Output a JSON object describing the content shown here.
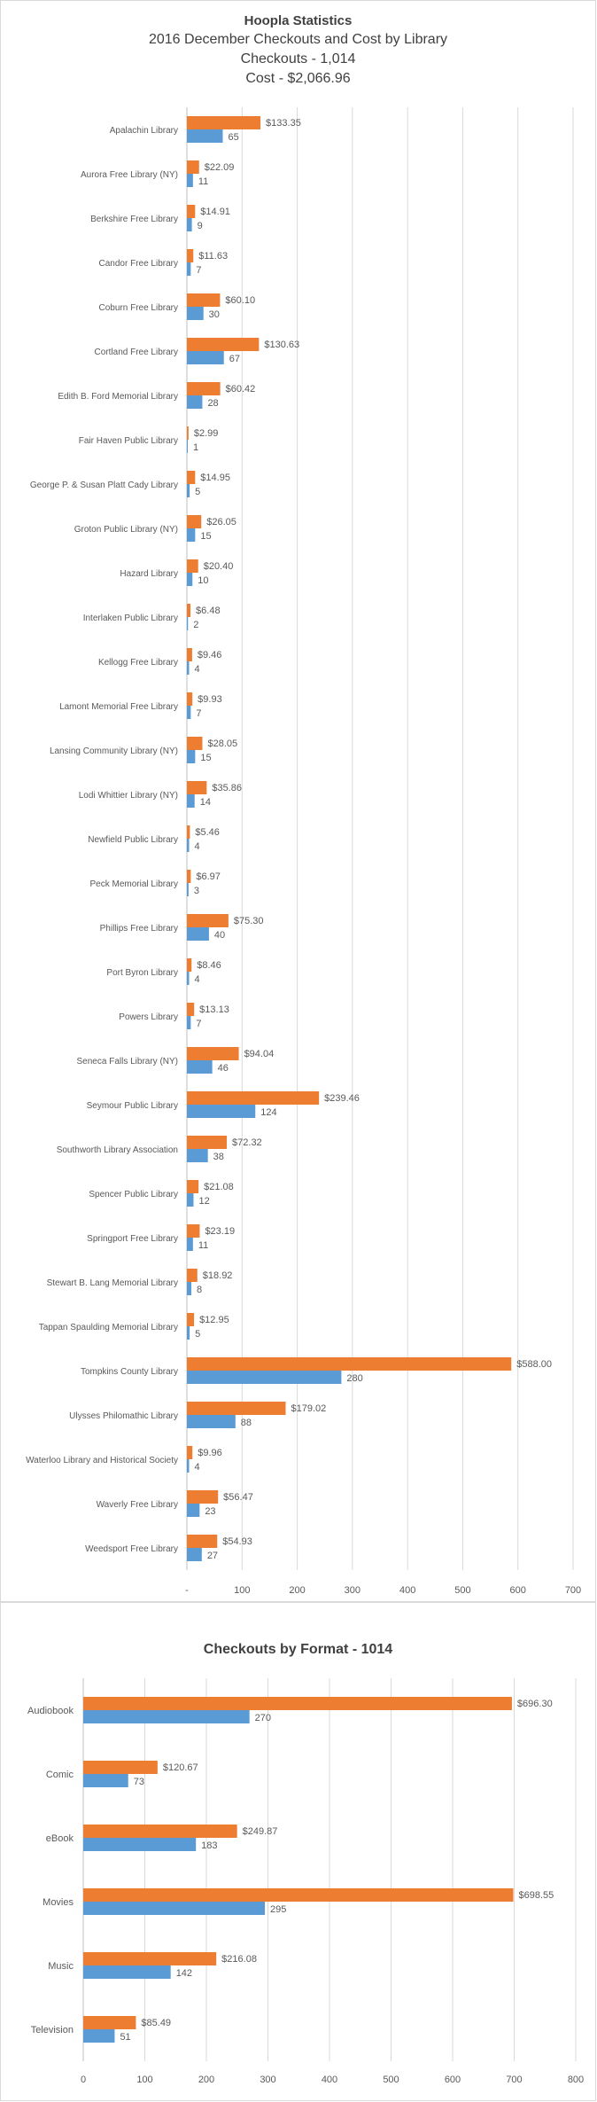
{
  "chart_data": [
    {
      "type": "bar",
      "orientation": "horizontal",
      "title": "Hoopla Statistics",
      "subtitles": [
        "2016 December Checkouts and Cost by Library",
        "Checkouts - 1,014",
        "Cost - $2,066.96"
      ],
      "categories": [
        "Apalachin Library",
        "Aurora Free Library (NY)",
        "Berkshire Free Library",
        "Candor Free Library",
        "Coburn Free Library",
        "Cortland Free Library",
        "Edith B. Ford Memorial Library",
        "Fair Haven Public Library",
        "George P. & Susan Platt Cady Library",
        "Groton Public Library (NY)",
        "Hazard Library",
        "Interlaken Public Library",
        "Kellogg Free Library",
        "Lamont Memorial Free Library",
        "Lansing Community Library (NY)",
        "Lodi Whittier Library (NY)",
        "Newfield Public Library",
        "Peck Memorial Library",
        "Phillips Free Library",
        "Port Byron Library",
        "Powers Library",
        "Seneca Falls Library (NY)",
        "Seymour Public Library",
        "Southworth Library Association",
        "Spencer Public Library",
        "Springport Free Library",
        "Stewart B. Lang Memorial Library",
        "Tappan Spaulding Memorial Library",
        "Tompkins County Library",
        "Ulysses Philomathic Library",
        "Waterloo Library and Historical Society",
        "Waverly Free Library",
        "Weedsport Free Library"
      ],
      "series": [
        {
          "color": "#ed7d31",
          "values": [
            133.35,
            22.09,
            14.91,
            11.63,
            60.1,
            130.63,
            60.42,
            2.99,
            14.95,
            26.05,
            20.4,
            6.48,
            9.46,
            9.93,
            28.05,
            35.86,
            5.46,
            6.97,
            75.3,
            8.46,
            13.13,
            94.04,
            239.46,
            72.32,
            21.08,
            23.19,
            18.92,
            12.95,
            588.0,
            179.02,
            9.96,
            56.47,
            54.93
          ],
          "labels": [
            "$133.35",
            "$22.09",
            "$14.91",
            "$11.63",
            "$60.10",
            "$130.63",
            "$60.42",
            "$2.99",
            "$14.95",
            "$26.05",
            "$20.40",
            "$6.48",
            "$9.46",
            "$9.93",
            "$28.05",
            "$35.86",
            "$5.46",
            "$6.97",
            "$75.30",
            "$8.46",
            "$13.13",
            "$94.04",
            "$239.46",
            "$72.32",
            "$21.08",
            "$23.19",
            "$18.92",
            "$12.95",
            "$588.00",
            "$179.02",
            "$9.96",
            "$56.47",
            "$54.93"
          ]
        },
        {
          "color": "#5b9bd5",
          "values": [
            65,
            11,
            9,
            7,
            30,
            67,
            28,
            1,
            5,
            15,
            10,
            2,
            4,
            7,
            15,
            14,
            4,
            3,
            40,
            4,
            7,
            46,
            124,
            38,
            12,
            11,
            8,
            5,
            280,
            88,
            4,
            23,
            27
          ],
          "labels": [
            "65",
            "11",
            "9",
            "7",
            "30",
            "67",
            "28",
            "1",
            "5",
            "15",
            "10",
            "2",
            "4",
            "7",
            "15",
            "14",
            "4",
            "3",
            "40",
            "4",
            "7",
            "46",
            "124",
            "38",
            "12",
            "11",
            "8",
            "5",
            "280",
            "88",
            "4",
            "23",
            "27"
          ]
        }
      ],
      "xlim": [
        0,
        700
      ],
      "x_ticks": [
        "-",
        "100",
        "200",
        "300",
        "400",
        "500",
        "600",
        "700"
      ],
      "grid": true
    },
    {
      "type": "bar",
      "orientation": "horizontal",
      "title": "Checkouts by Format - 1014",
      "categories": [
        "Audiobook",
        "Comic",
        "eBook",
        "Movies",
        "Music",
        "Television"
      ],
      "series": [
        {
          "color": "#ed7d31",
          "values": [
            696.3,
            120.67,
            249.87,
            698.55,
            216.08,
            85.49
          ],
          "labels": [
            "$696.30",
            "$120.67",
            "$249.87",
            "$698.55",
            "$216.08",
            "$85.49"
          ]
        },
        {
          "color": "#5b9bd5",
          "values": [
            270,
            73,
            183,
            295,
            142,
            51
          ],
          "labels": [
            "270",
            "73",
            "183",
            "295",
            "142",
            "51"
          ]
        }
      ],
      "xlim": [
        0,
        800
      ],
      "x_ticks": [
        "0",
        "100",
        "200",
        "300",
        "400",
        "500",
        "600",
        "700",
        "800"
      ],
      "grid": true
    }
  ]
}
